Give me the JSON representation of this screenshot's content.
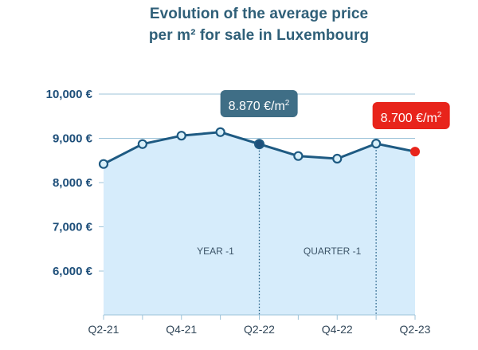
{
  "title_line1": "Evolution of the average price",
  "title_line2": "per m² for sale in Luxembourg",
  "chart_data": {
    "type": "area",
    "title": "Evolution of the average price per m² for sale in Luxembourg",
    "x": [
      "Q2-21",
      "Q3-21",
      "Q4-21",
      "Q1-22",
      "Q2-22",
      "Q3-22",
      "Q4-22",
      "Q1-23",
      "Q2-23"
    ],
    "tick_labels_x": [
      "Q2-21",
      "Q4-21",
      "Q2-22",
      "Q4-22",
      "Q2-23"
    ],
    "series": [
      {
        "values": [
          8420,
          8870,
          9060,
          9140,
          8870,
          8600,
          8540,
          8880,
          8700
        ]
      }
    ],
    "ylim": [
      5000,
      10000
    ],
    "yticks": [
      6000,
      7000,
      8000,
      9000,
      10000
    ],
    "ytick_labels": [
      "6,000 €",
      "7,000 €",
      "8,000 €",
      "9,000 €",
      "10,000 €"
    ],
    "grid": true,
    "annotations": [
      {
        "x": "Q2-22",
        "text": "YEAR -1",
        "type": "vertical-marker"
      },
      {
        "x": "Q1-23",
        "text": "QUARTER -1",
        "type": "vertical-marker"
      }
    ],
    "callouts": [
      {
        "x": "Q2-22",
        "value": "8.870 €/m",
        "sup": "2"
      },
      {
        "x": "Q2-23",
        "value": "8.700 €/m",
        "sup": "2"
      }
    ],
    "colors": {
      "line": "#1e5a82",
      "fill": "#d6ecfb",
      "grid": "#9cc3d9",
      "marker_fill": "#d9f0fa",
      "highlight_prev": "#1e4f7a",
      "highlight_curr": "#e8241b",
      "callout_prev": "#3f6e86",
      "callout_curr": "#e8241b"
    }
  }
}
